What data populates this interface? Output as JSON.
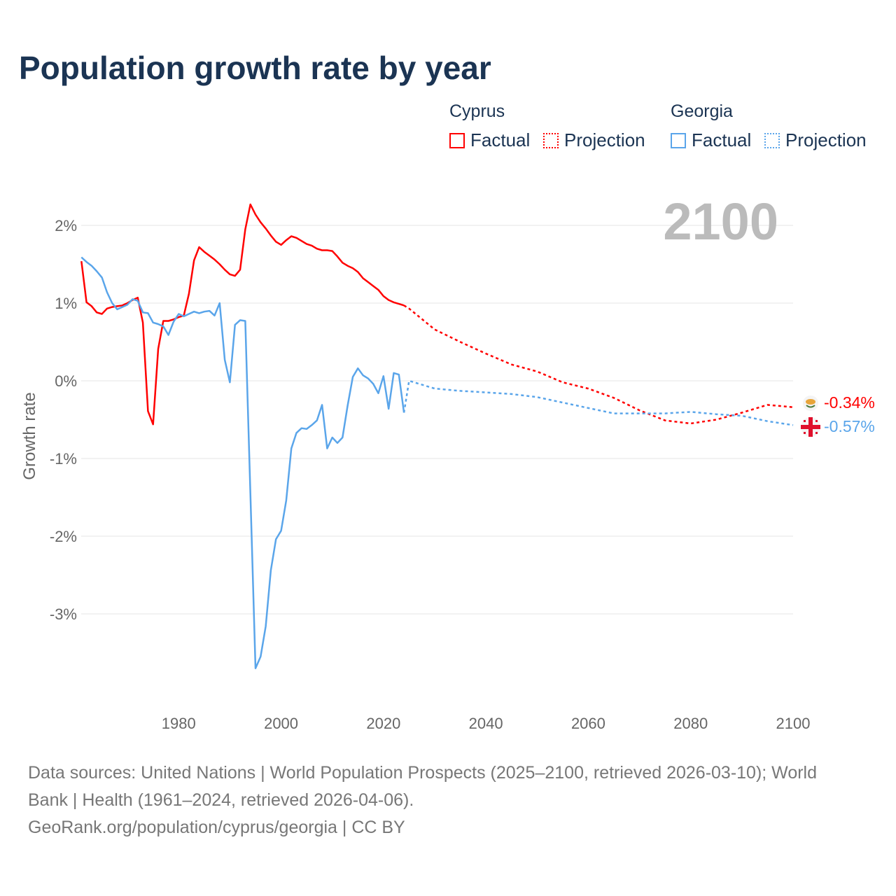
{
  "title": "Population growth rate by year",
  "legend": {
    "groups": [
      {
        "name": "Cyprus",
        "color": "#ff0000",
        "items": [
          "Factual",
          "Projection"
        ]
      },
      {
        "name": "Georgia",
        "color": "#5aa5ea",
        "items": [
          "Factual",
          "Projection"
        ]
      }
    ]
  },
  "year_label": "2100",
  "end_labels": {
    "cyprus": "-0.34%",
    "georgia": "-0.57%"
  },
  "footer": {
    "line1": "Data sources: United Nations | World Population Prospects (2025–2100, retrieved 2026-03-10); World",
    "line2": "Bank | Health (1961–2024, retrieved 2026-04-06).",
    "line3": "GeoRank.org/population/cyprus/georgia | CC BY"
  },
  "chart_data": {
    "type": "line",
    "title": "Population growth rate by year",
    "xlabel": "",
    "ylabel": "Growth rate",
    "xlim": [
      1961,
      2100
    ],
    "ylim": [
      -4.1,
      2.8
    ],
    "xticks": [
      1980,
      2000,
      2020,
      2040,
      2060,
      2080,
      2100
    ],
    "xtick_labels": [
      "1980",
      "2000",
      "2020",
      "2040",
      "2060",
      "2080",
      "2100"
    ],
    "yticks": [
      2,
      1,
      0,
      -1,
      -2,
      -3
    ],
    "ytick_labels": [
      "2%",
      "1%",
      "0%",
      "-1%",
      "-2%",
      "-3%"
    ],
    "grid": true,
    "legend_position": "top-right",
    "series": [
      {
        "name": "Cyprus Factual",
        "color": "#ff0000",
        "style": "solid",
        "x_start": 1961,
        "values": [
          1.54,
          1.01,
          0.96,
          0.88,
          0.86,
          0.93,
          0.95,
          0.96,
          0.97,
          1.0,
          1.04,
          1.07,
          0.75,
          -0.39,
          -0.56,
          0.41,
          0.77,
          0.77,
          0.79,
          0.82,
          0.84,
          1.12,
          1.55,
          1.72,
          1.66,
          1.61,
          1.56,
          1.5,
          1.43,
          1.37,
          1.35,
          1.43,
          1.95,
          2.27,
          2.14,
          2.04,
          1.96,
          1.87,
          1.79,
          1.75,
          1.81,
          1.86,
          1.84,
          1.8,
          1.76,
          1.74,
          1.7,
          1.68,
          1.68,
          1.67,
          1.6,
          1.52,
          1.48,
          1.45,
          1.4,
          1.32,
          1.27,
          1.22,
          1.17,
          1.09,
          1.04,
          1.01,
          0.99,
          0.97
        ]
      },
      {
        "name": "Cyprus Projection",
        "color": "#ff0000",
        "style": "dotted",
        "x": [
          2024,
          2025,
          2030,
          2035,
          2040,
          2045,
          2050,
          2055,
          2060,
          2065,
          2070,
          2075,
          2080,
          2085,
          2090,
          2095,
          2100
        ],
        "values": [
          0.97,
          0.93,
          0.66,
          0.5,
          0.35,
          0.21,
          0.12,
          -0.02,
          -0.1,
          -0.22,
          -0.38,
          -0.51,
          -0.55,
          -0.5,
          -0.41,
          -0.31,
          -0.34
        ]
      },
      {
        "name": "Georgia Factual",
        "color": "#5aa5ea",
        "style": "solid",
        "x_start": 1961,
        "values": [
          1.59,
          1.53,
          1.48,
          1.41,
          1.33,
          1.14,
          1.0,
          0.92,
          0.95,
          0.98,
          1.05,
          1.03,
          0.88,
          0.87,
          0.75,
          0.73,
          0.7,
          0.59,
          0.76,
          0.86,
          0.83,
          0.86,
          0.89,
          0.87,
          0.89,
          0.9,
          0.84,
          1.0,
          0.27,
          -0.02,
          0.72,
          0.78,
          0.77,
          -1.45,
          -3.7,
          -3.55,
          -3.16,
          -2.44,
          -2.04,
          -1.93,
          -1.54,
          -0.87,
          -0.67,
          -0.61,
          -0.62,
          -0.57,
          -0.51,
          -0.31,
          -0.87,
          -0.73,
          -0.8,
          -0.73,
          -0.32,
          0.05,
          0.16,
          0.07,
          0.03,
          -0.04,
          -0.16,
          0.06,
          -0.36,
          0.1,
          0.08,
          -0.41
        ]
      },
      {
        "name": "Georgia Projection",
        "color": "#5aa5ea",
        "style": "dotted",
        "x": [
          2024,
          2025,
          2030,
          2035,
          2040,
          2045,
          2050,
          2055,
          2060,
          2065,
          2070,
          2075,
          2080,
          2085,
          2090,
          2095,
          2100
        ],
        "values": [
          -0.41,
          0.0,
          -0.1,
          -0.13,
          -0.15,
          -0.17,
          -0.21,
          -0.28,
          -0.35,
          -0.42,
          -0.42,
          -0.42,
          -0.4,
          -0.43,
          -0.45,
          -0.52,
          -0.57
        ]
      }
    ]
  }
}
